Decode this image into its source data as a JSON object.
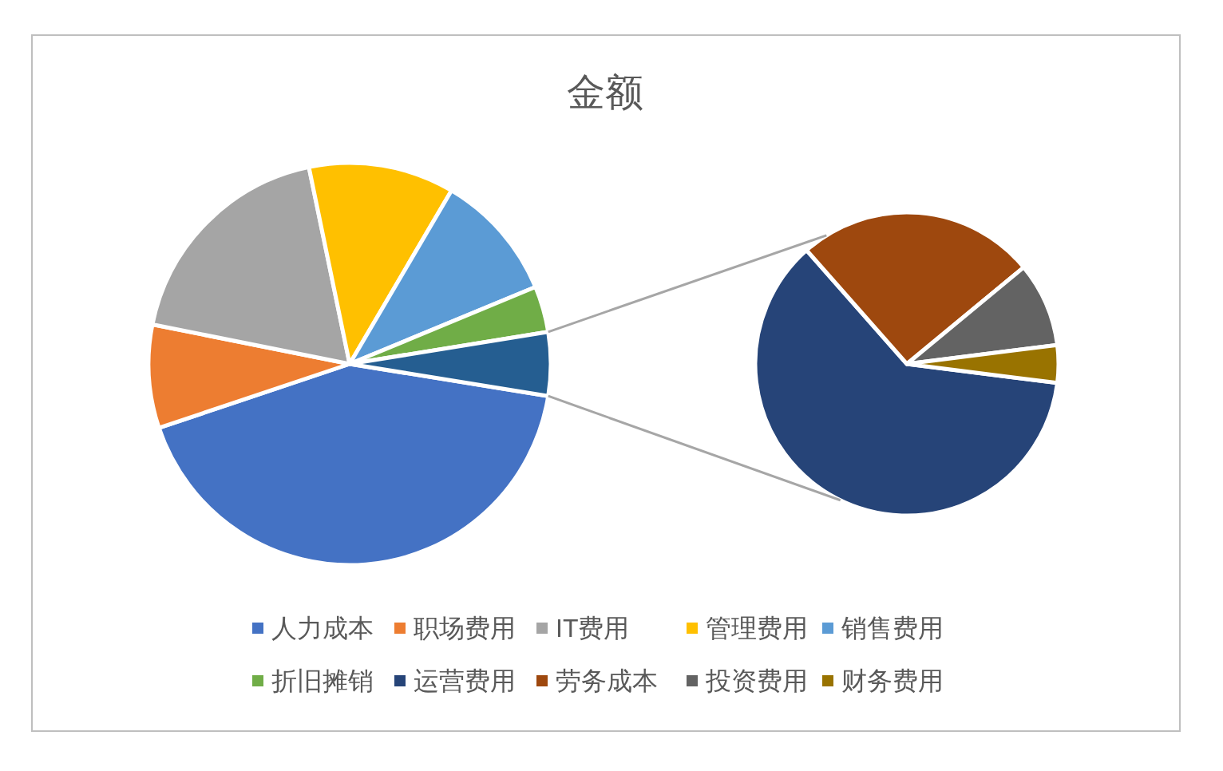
{
  "chart_data": [
    {
      "type": "pie",
      "title": "金额",
      "legend": "bottom",
      "categories": [
        "人力成本",
        "职场费用",
        "IT费用",
        "管理费用",
        "销售费用",
        "折旧摊销",
        null
      ],
      "values": [
        42.3,
        8.3,
        18.6,
        11.7,
        10.3,
        3.7,
        5.1
      ],
      "colors": [
        "#4472c4",
        "#ed7d31",
        "#a5a5a5",
        "#ffc000",
        "#5b9bd5",
        "#70ad47",
        "#255e91"
      ]
    },
    {
      "type": "pie",
      "legend": "bottom",
      "categories": [
        "运营费用",
        "劳务成本",
        "投资费用",
        "财务费用"
      ],
      "values": [
        61.5,
        25.5,
        9,
        4
      ],
      "colors": [
        "#264478",
        "#9e480e",
        "#636363",
        "#997300"
      ]
    }
  ]
}
